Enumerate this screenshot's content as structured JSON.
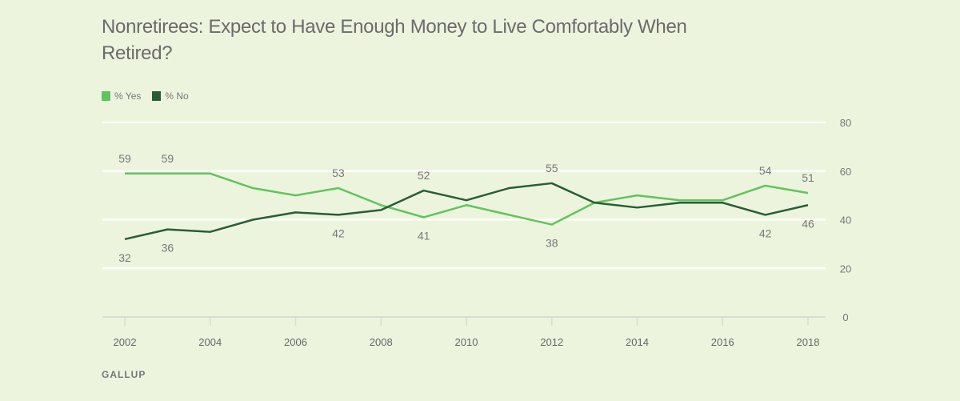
{
  "title": "Nonretirees: Expect to Have Enough Money to Live Comfortably When Retired?",
  "footer": "GALLUP",
  "legend": [
    {
      "label": "% Yes",
      "color": "#5ec65a"
    },
    {
      "label": "% No",
      "color": "#275e37"
    }
  ],
  "chart_data": {
    "type": "line",
    "title": "Nonretirees: Expect to Have Enough Money to Live Comfortably When Retired?",
    "xlabel": "",
    "ylabel": "",
    "x": [
      2002,
      2003,
      2004,
      2005,
      2006,
      2007,
      2008,
      2009,
      2010,
      2011,
      2012,
      2013,
      2014,
      2015,
      2016,
      2017,
      2018
    ],
    "xticks": [
      "2002",
      "2004",
      "2006",
      "2008",
      "2010",
      "2012",
      "2014",
      "2016",
      "2018"
    ],
    "yticks": [
      "0",
      "20",
      "40",
      "60",
      "80"
    ],
    "ylim": [
      0,
      80
    ],
    "xlim": [
      2002,
      2018
    ],
    "grid": true,
    "legend_position": "top-left",
    "series": [
      {
        "name": "% Yes",
        "color": "#5ec65a",
        "values": [
          59,
          59,
          59,
          53,
          50,
          53,
          46,
          41,
          46,
          42,
          38,
          47,
          50,
          48,
          48,
          54,
          51
        ],
        "labels": {
          "2002": "59",
          "2003": "59",
          "2007": "53",
          "2009": "41",
          "2012": "38",
          "2017": "54",
          "2018": "51"
        }
      },
      {
        "name": "% No",
        "color": "#275e37",
        "values": [
          32,
          36,
          35,
          40,
          43,
          42,
          44,
          52,
          48,
          53,
          55,
          47,
          45,
          47,
          47,
          42,
          46
        ],
        "labels": {
          "2002": "32",
          "2003": "36",
          "2007": "42",
          "2009": "52",
          "2012": "55",
          "2017": "42",
          "2018": "46"
        }
      }
    ]
  }
}
